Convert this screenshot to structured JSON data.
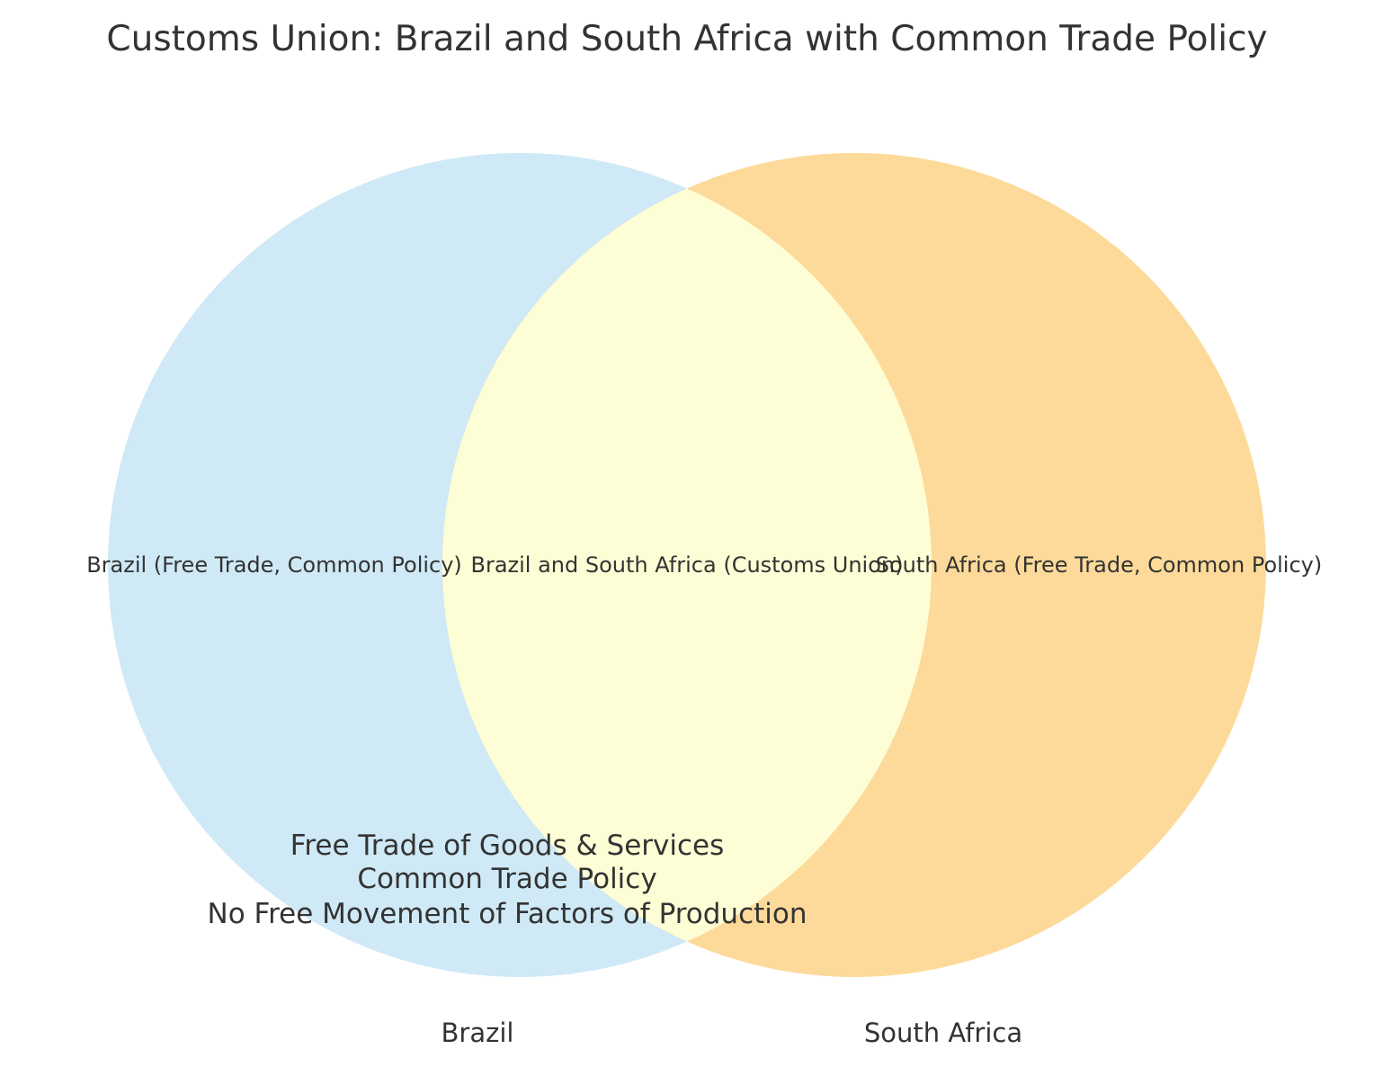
{
  "title": "Customs Union: Brazil and South Africa with Common Trade Policy",
  "colors": {
    "brazil_only": "#cfe9f6",
    "south_africa_only": "#fdda99",
    "intersection": "#fefed6",
    "text": "#333333"
  },
  "sets": [
    {
      "name": "Brazil",
      "region_label": "Brazil (Free Trade, Common Policy)"
    },
    {
      "name": "South Africa",
      "region_label": "South Africa (Free Trade, Common Policy)"
    }
  ],
  "intersection_label": "Brazil and South Africa (Customs Union)",
  "notes": [
    "Free Trade of Goods & Services",
    "Common Trade Policy",
    "No Free Movement of Factors of Production"
  ]
}
